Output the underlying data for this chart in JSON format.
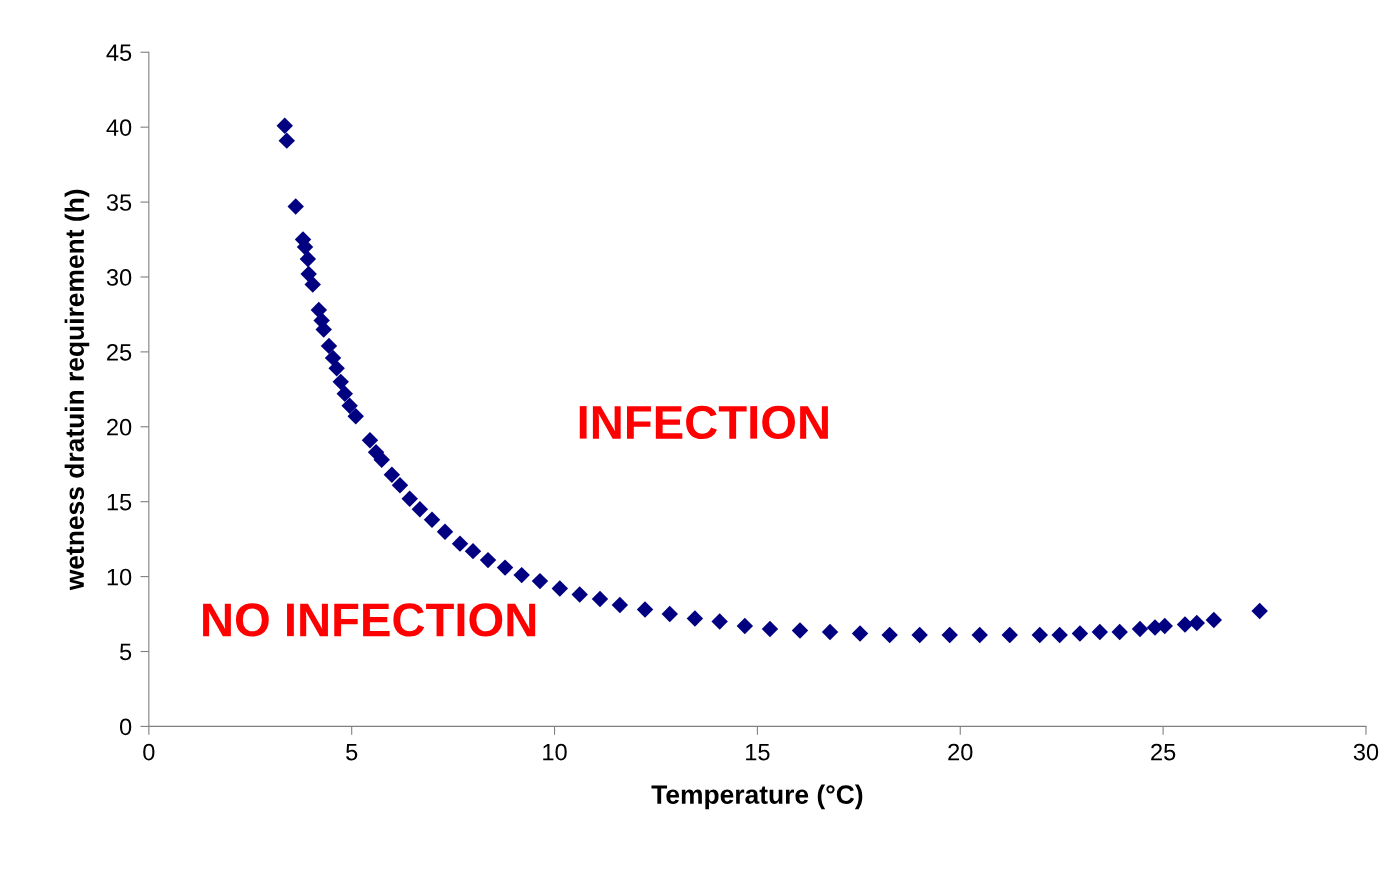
{
  "chart_data": {
    "type": "scatter",
    "xlabel": "Temperature (°C)",
    "ylabel": "wetness dratuin requirement (h)",
    "annotations": [
      "INFECTION",
      "NO INFECTION"
    ],
    "xlim": [
      0,
      30
    ],
    "xticks": [
      0,
      5,
      10,
      15,
      20,
      25,
      30
    ],
    "ylim": [
      0,
      45
    ],
    "yticks": [
      0,
      5,
      10,
      15,
      20,
      25,
      30,
      35,
      40,
      45
    ],
    "grid": false,
    "marker": "diamond",
    "series": [
      {
        "color": "#000080",
        "x": [
          3.35,
          3.4,
          3.62,
          3.8,
          3.85,
          3.92,
          3.94,
          4.04,
          4.19,
          4.26,
          4.31,
          4.44,
          4.54,
          4.63,
          4.73,
          4.83,
          4.95,
          5.1,
          5.45,
          5.6,
          5.74,
          5.99,
          6.19,
          6.43,
          6.68,
          6.98,
          7.3,
          7.67,
          7.99,
          8.36,
          8.78,
          9.19,
          9.64,
          10.13,
          10.62,
          11.12,
          11.61,
          12.23,
          12.84,
          13.46,
          14.07,
          14.69,
          15.31,
          16.05,
          16.79,
          17.53,
          18.26,
          19.0,
          19.74,
          20.48,
          21.22,
          21.96,
          22.45,
          22.95,
          23.44,
          23.93,
          24.43,
          24.8,
          25.04,
          25.54,
          25.83,
          26.25,
          27.38
        ],
        "values": [
          40.1,
          39.1,
          34.7,
          32.5,
          32.0,
          31.2,
          30.2,
          29.5,
          27.8,
          27.1,
          26.5,
          25.4,
          24.6,
          23.9,
          23.0,
          22.2,
          21.4,
          20.7,
          19.1,
          18.3,
          17.8,
          16.8,
          16.1,
          15.2,
          14.5,
          13.8,
          13.0,
          12.2,
          11.7,
          11.1,
          10.6,
          10.1,
          9.7,
          9.2,
          8.8,
          8.5,
          8.1,
          7.8,
          7.5,
          7.2,
          7.0,
          6.7,
          6.5,
          6.4,
          6.3,
          6.2,
          6.1,
          6.1,
          6.1,
          6.1,
          6.1,
          6.1,
          6.1,
          6.2,
          6.3,
          6.3,
          6.5,
          6.6,
          6.7,
          6.8,
          6.9,
          7.1,
          7.7
        ]
      }
    ]
  }
}
